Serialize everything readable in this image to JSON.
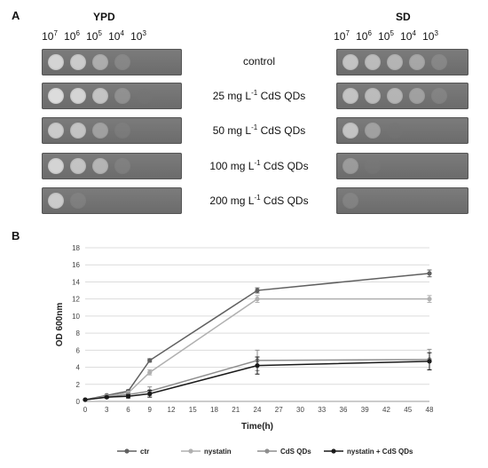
{
  "panel_a": {
    "letter": "A",
    "ypd_header": "YPD",
    "sd_header": "SD",
    "dilutions": [
      {
        "base": "10",
        "exp": "7"
      },
      {
        "base": "10",
        "exp": "6"
      },
      {
        "base": "10",
        "exp": "5"
      },
      {
        "base": "10",
        "exp": "4"
      },
      {
        "base": "10",
        "exp": "3"
      }
    ],
    "conditions": [
      {
        "pre": "control",
        "sup": "",
        "post": ""
      },
      {
        "pre": "25 mg L",
        "sup": "-1",
        "post": " CdS QDs"
      },
      {
        "pre": "50 mg L",
        "sup": "-1",
        "post": " CdS QDs"
      },
      {
        "pre": "100 mg L",
        "sup": "-1",
        "post": " CdS QDs"
      },
      {
        "pre": "200 mg L",
        "sup": "-1",
        "post": " CdS QDs"
      }
    ],
    "ypd_growth": [
      [
        0.95,
        0.9,
        0.7,
        0.35,
        0.0
      ],
      [
        1.0,
        0.95,
        0.85,
        0.45,
        0.05
      ],
      [
        0.9,
        0.85,
        0.6,
        0.2,
        0.0
      ],
      [
        0.95,
        0.85,
        0.75,
        0.25,
        0.0
      ],
      [
        0.9,
        0.25,
        0.0,
        0.0,
        0.0
      ]
    ],
    "sd_growth": [
      [
        0.85,
        0.8,
        0.75,
        0.65,
        0.35
      ],
      [
        0.85,
        0.8,
        0.75,
        0.6,
        0.3
      ],
      [
        0.85,
        0.6,
        0.05,
        0.0,
        0.0
      ],
      [
        0.55,
        0.1,
        0.0,
        0.0,
        0.0
      ],
      [
        0.3,
        0.0,
        0.0,
        0.0,
        0.0
      ]
    ]
  },
  "panel_b": {
    "letter": "B"
  },
  "chart_data": {
    "type": "line",
    "xlabel": "Time(h)",
    "ylabel": "OD 600nm",
    "x_ticks": [
      0,
      3,
      6,
      9,
      12,
      15,
      18,
      21,
      24,
      27,
      30,
      33,
      36,
      39,
      42,
      45,
      48
    ],
    "y_ticks": [
      0,
      2,
      4,
      6,
      8,
      10,
      12,
      14,
      16,
      18
    ],
    "xlim": [
      0,
      48
    ],
    "ylim": [
      0,
      18
    ],
    "grid": true,
    "legend_position": "bottom",
    "x": [
      0,
      3,
      6,
      9,
      24,
      48
    ],
    "series": [
      {
        "name": "ctr",
        "color": "#606060",
        "values": [
          0.2,
          0.7,
          1.2,
          4.8,
          13.0,
          15.0
        ],
        "errors": [
          0.05,
          0.1,
          0.15,
          0.2,
          0.3,
          0.4
        ]
      },
      {
        "name": "nystatin",
        "color": "#b0b0b0",
        "values": [
          0.2,
          0.6,
          1.0,
          3.4,
          12.0,
          12.0
        ],
        "errors": [
          0.05,
          0.1,
          0.1,
          0.3,
          0.4,
          0.4
        ]
      },
      {
        "name": "CdS QDs",
        "color": "#8e8e8e",
        "values": [
          0.2,
          0.5,
          0.8,
          1.2,
          4.8,
          4.9
        ],
        "errors": [
          0.05,
          0.1,
          0.2,
          0.5,
          1.2,
          1.2
        ]
      },
      {
        "name": "nystatin + CdS QDs",
        "color": "#1a1a1a",
        "values": [
          0.2,
          0.5,
          0.6,
          0.9,
          4.2,
          4.7
        ],
        "errors": [
          0.05,
          0.1,
          0.2,
          0.4,
          1.0,
          1.0
        ]
      }
    ]
  }
}
